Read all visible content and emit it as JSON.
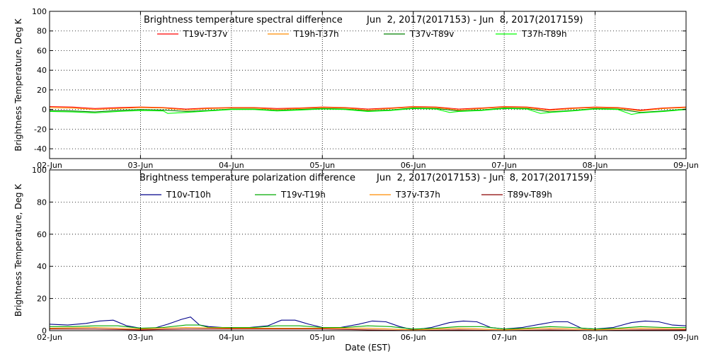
{
  "chart_data": [
    {
      "type": "line",
      "title": "Brightness temperature spectral difference",
      "subtitle": "Jun  2, 2017(2017153) - Jun  8, 2017(2017159)",
      "ylabel": "Brightness Temperature, Deg K",
      "xlabel": "",
      "ylim": [
        -50,
        100
      ],
      "yticks": [
        -40,
        -20,
        0,
        20,
        40,
        60,
        80,
        100
      ],
      "xlim": [
        0,
        7
      ],
      "xticks": [
        "02-Jun",
        "03-Jun",
        "04-Jun",
        "05-Jun",
        "06-Jun",
        "07-Jun",
        "08-Jun",
        "09-Jun"
      ],
      "grid": true,
      "legend_position": "top",
      "series": [
        {
          "name": "T19v-T37v",
          "color": "#ff0000",
          "x": [
            0,
            0.25,
            0.5,
            0.75,
            1,
            1.25,
            1.5,
            1.75,
            2,
            2.25,
            2.5,
            2.75,
            3,
            3.25,
            3.5,
            3.75,
            4,
            4.25,
            4.5,
            4.75,
            5,
            5.25,
            5.5,
            5.75,
            6,
            6.25,
            6.5,
            6.75,
            7
          ],
          "y": [
            3,
            2.5,
            1,
            2,
            2.5,
            2,
            0.5,
            1.5,
            2,
            2,
            1,
            1.5,
            2.5,
            2,
            0.5,
            1.5,
            3,
            2.5,
            0.5,
            1.5,
            3,
            2.5,
            0,
            1.5,
            2.5,
            2,
            -0.5,
            1.5,
            2.5
          ]
        },
        {
          "name": "T19h-T37h",
          "color": "#ff8c00",
          "x": [
            0,
            0.25,
            0.5,
            0.75,
            1,
            1.25,
            1.5,
            1.75,
            2,
            2.25,
            2.5,
            2.75,
            3,
            3.25,
            3.5,
            3.75,
            4,
            4.25,
            4.5,
            4.75,
            5,
            5.25,
            5.5,
            5.75,
            6,
            6.25,
            6.5,
            6.75,
            7
          ],
          "y": [
            2,
            1.5,
            0,
            1,
            2,
            1.5,
            -0.5,
            1,
            1.5,
            1.5,
            0,
            1,
            2,
            1.5,
            -0.5,
            1,
            2.5,
            2,
            -0.5,
            1,
            2.5,
            2,
            -1,
            1,
            2,
            1.5,
            -1.5,
            1,
            2
          ]
        },
        {
          "name": "T37v-T89v",
          "color": "#008000",
          "x": [
            0,
            0.25,
            0.5,
            0.75,
            1,
            1.25,
            1.5,
            1.75,
            2,
            2.25,
            2.5,
            2.75,
            3,
            3.25,
            3.5,
            3.75,
            4,
            4.25,
            4.5,
            4.75,
            5,
            5.25,
            5.5,
            5.75,
            6,
            6.25,
            6.5,
            6.75,
            7
          ],
          "y": [
            -1,
            -1.5,
            -2.5,
            -1,
            0,
            -0.5,
            -2,
            -1,
            0.5,
            0.5,
            -1,
            0,
            1,
            0.5,
            -1.5,
            -0.5,
            1.5,
            1,
            -1.5,
            -0.5,
            1.5,
            1,
            -2.5,
            -1,
            1,
            0.5,
            -3,
            -1.5,
            0.5
          ]
        },
        {
          "name": "T37h-T89h",
          "color": "#00ff00",
          "x": [
            0,
            0.25,
            0.5,
            0.75,
            1,
            1.25,
            1.3,
            1.5,
            1.75,
            2,
            2.25,
            2.5,
            2.75,
            3,
            3.25,
            3.5,
            3.75,
            4,
            4.25,
            4.4,
            4.5,
            4.75,
            5,
            5.25,
            5.4,
            5.5,
            5.75,
            6,
            6.25,
            6.4,
            6.5,
            6.75,
            7
          ],
          "y": [
            -2,
            -2.5,
            -3.5,
            -2,
            -1,
            -1.5,
            -4,
            -3,
            -1.5,
            0,
            0,
            -1.5,
            -0.5,
            0.5,
            0,
            -2,
            -1,
            1,
            0.5,
            -3,
            -2,
            -1,
            1,
            0.5,
            -4,
            -3,
            -1.5,
            0.5,
            0,
            -5,
            -3.5,
            -2,
            0
          ]
        }
      ]
    },
    {
      "type": "line",
      "title": "Brightness temperature polarization difference",
      "subtitle": "Jun  2, 2017(2017153) - Jun  8, 2017(2017159)",
      "ylabel": "Brightness Temperature, Deg K",
      "xlabel": "Date (EST)",
      "ylim": [
        0,
        100
      ],
      "yticks": [
        0,
        20,
        40,
        60,
        80,
        100
      ],
      "xlim": [
        0,
        7
      ],
      "xticks": [
        "02-Jun",
        "03-Jun",
        "04-Jun",
        "05-Jun",
        "06-Jun",
        "07-Jun",
        "08-Jun",
        "09-Jun"
      ],
      "grid": true,
      "legend_position": "top",
      "series": [
        {
          "name": "T10v-T10h",
          "color": "#00008b",
          "x": [
            0,
            0.2,
            0.4,
            0.55,
            0.7,
            0.85,
            1,
            1.15,
            1.3,
            1.45,
            1.55,
            1.65,
            1.75,
            1.9,
            2,
            2.2,
            2.4,
            2.55,
            2.7,
            2.85,
            3,
            3.2,
            3.4,
            3.55,
            3.7,
            3.85,
            4,
            4.2,
            4.4,
            4.55,
            4.7,
            4.85,
            5,
            5.2,
            5.4,
            5.55,
            5.7,
            5.85,
            6,
            6.2,
            6.4,
            6.55,
            6.7,
            6.85,
            7
          ],
          "y": [
            4,
            3.5,
            4.5,
            6,
            6.5,
            3,
            1.5,
            1.5,
            4,
            7,
            8.5,
            3.5,
            2.5,
            2,
            2,
            2,
            3,
            6.5,
            6.5,
            4,
            2,
            2,
            4,
            6,
            5.5,
            2.5,
            0.5,
            2,
            5,
            6,
            5.5,
            2,
            1,
            2,
            4,
            5.5,
            5.5,
            1.5,
            1,
            2,
            5,
            6,
            5.5,
            3.5,
            3
          ]
        },
        {
          "name": "T19v-T19h",
          "color": "#00aa00",
          "x": [
            0,
            0.25,
            0.5,
            0.75,
            1,
            1.25,
            1.5,
            1.65,
            1.75,
            2,
            2.25,
            2.5,
            2.75,
            3,
            3.25,
            3.5,
            3.75,
            4,
            4.25,
            4.5,
            4.75,
            5,
            5.25,
            5.5,
            5.75,
            6,
            6.25,
            6.5,
            6.75,
            7
          ],
          "y": [
            2.5,
            2.5,
            3,
            3,
            1.5,
            2,
            3.5,
            3.5,
            2,
            2,
            2,
            3,
            3,
            2,
            2,
            3,
            2.5,
            1,
            1.5,
            2.5,
            2.5,
            1,
            1.5,
            2.5,
            2,
            1,
            1.5,
            2.5,
            2,
            2
          ]
        },
        {
          "name": "T37v-T37h",
          "color": "#ff8c00",
          "x": [
            0,
            0.5,
            1,
            1.5,
            2,
            2.5,
            3,
            3.5,
            4,
            4.5,
            5,
            5.5,
            6,
            6.5,
            7
          ],
          "y": [
            1.5,
            2,
            1,
            2,
            1.5,
            1.5,
            1.5,
            1.5,
            0.5,
            1.5,
            0.5,
            1.5,
            0.5,
            1.5,
            1
          ]
        },
        {
          "name": "T89v-T89h",
          "color": "#8b0000",
          "x": [
            0,
            0.5,
            1,
            1.5,
            2,
            2.5,
            3,
            3.5,
            4,
            4.5,
            5,
            5.5,
            6,
            6.5,
            7
          ],
          "y": [
            1,
            1,
            0.5,
            1,
            1,
            1,
            1,
            0.5,
            0,
            0.5,
            0,
            0.5,
            0,
            0.5,
            0.5
          ]
        }
      ]
    }
  ]
}
